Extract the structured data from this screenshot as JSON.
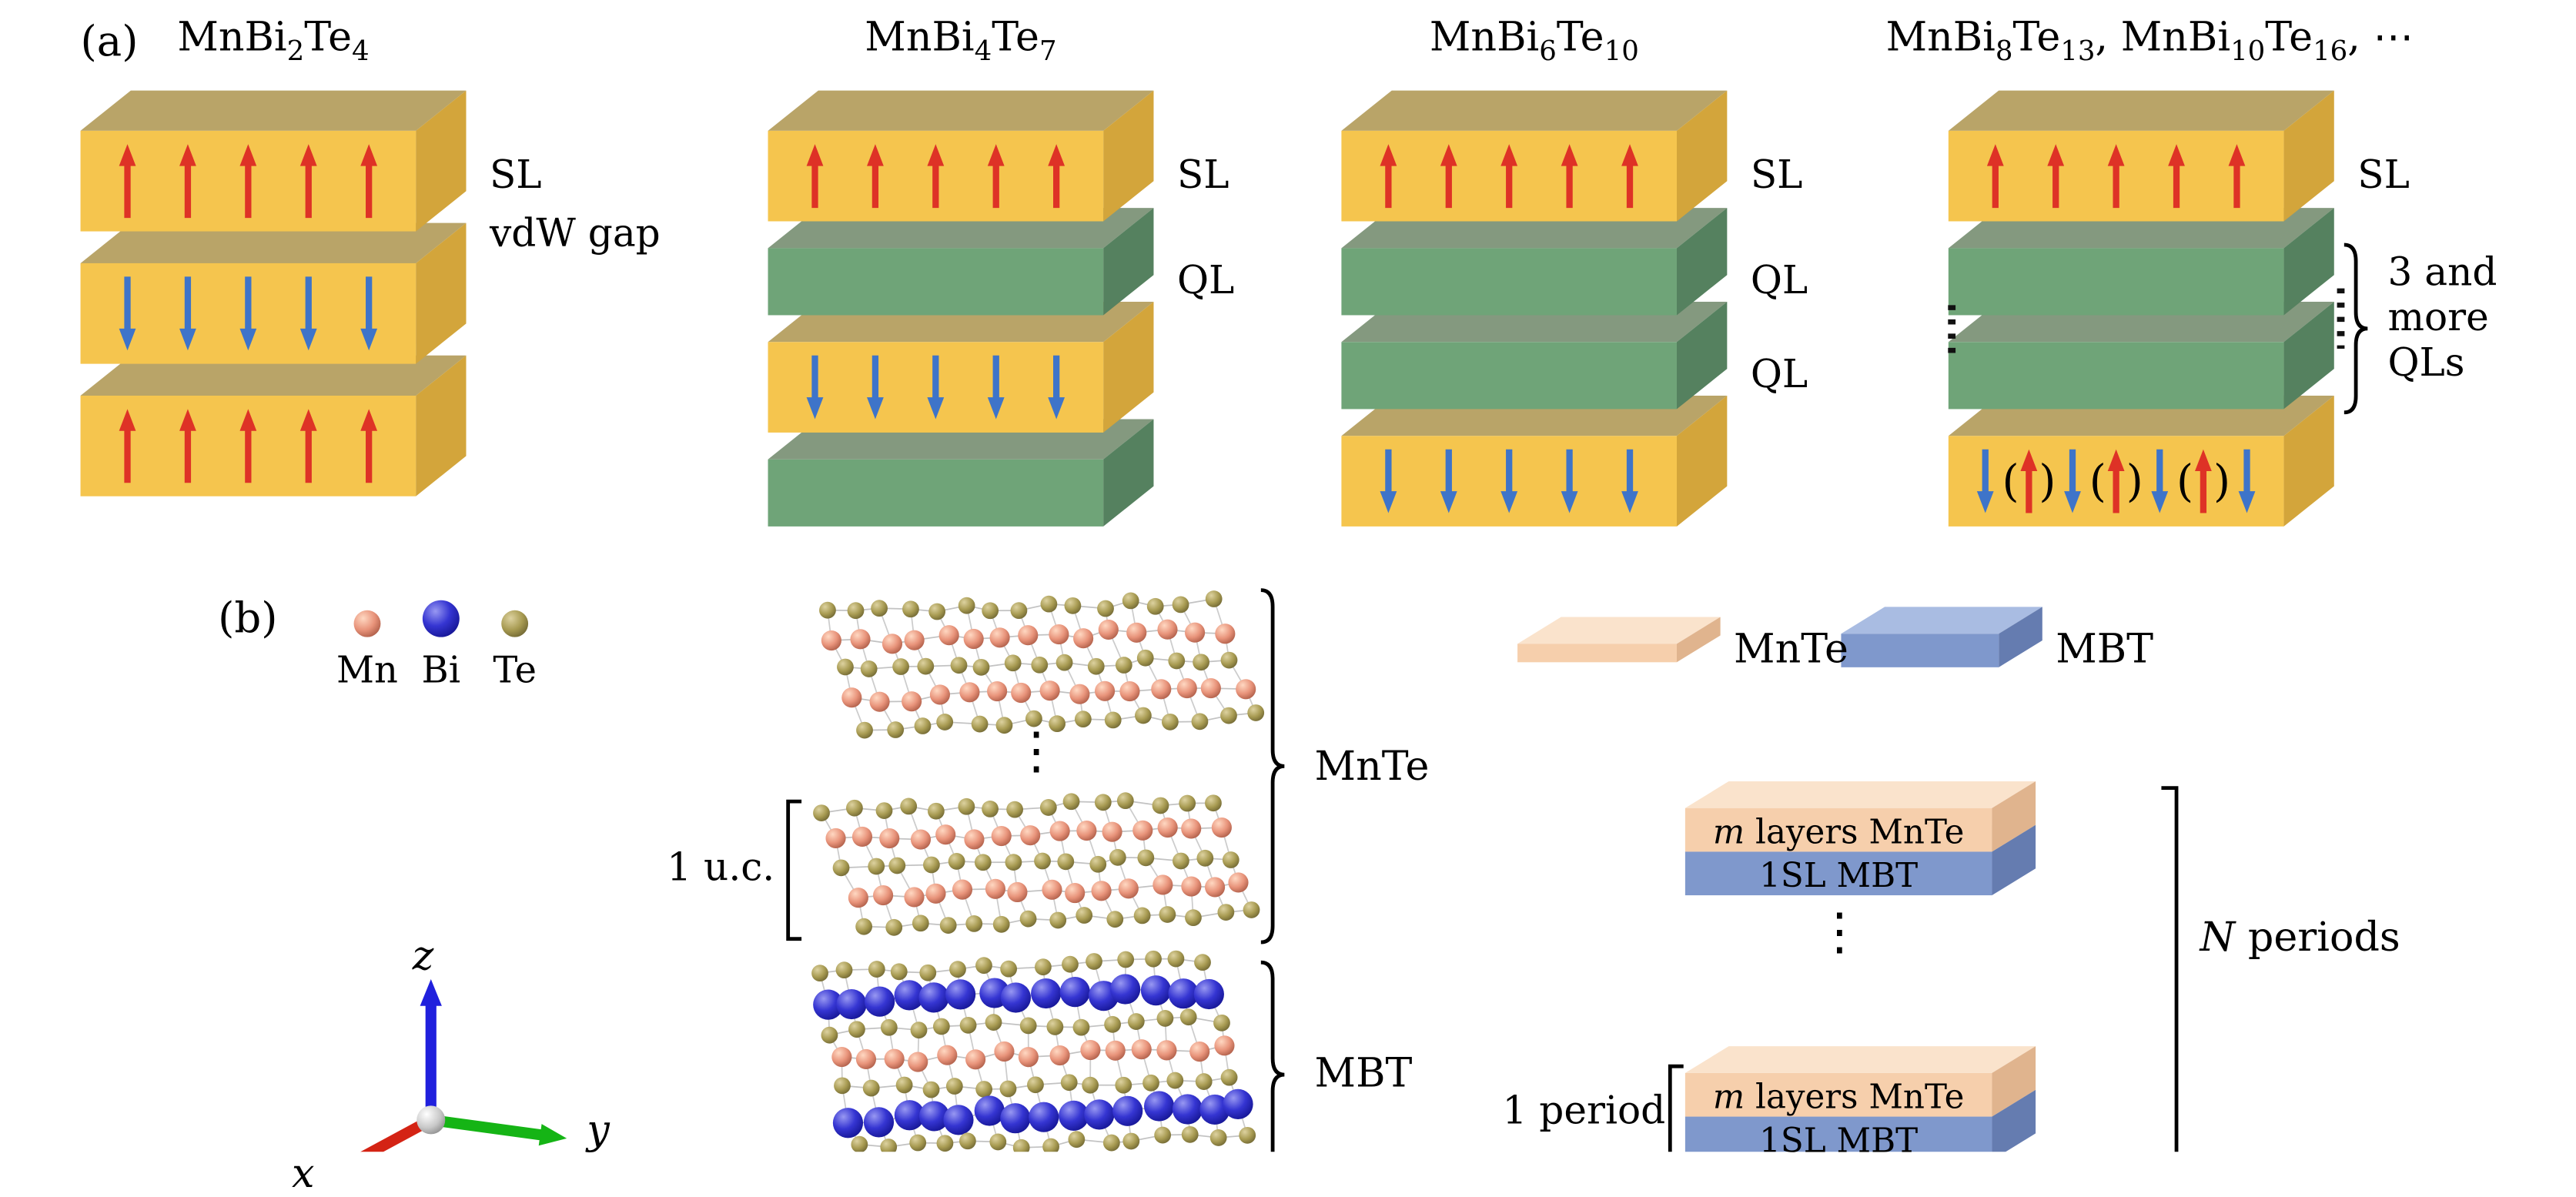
{
  "panel_a": {
    "label": "(a)",
    "columns": [
      {
        "title": "MnBi{2}Te{4}",
        "layers": [
          {
            "kind": "SL",
            "arrows": "up"
          },
          {
            "kind": "SL",
            "arrows": "down"
          },
          {
            "kind": "SL",
            "arrows": "up"
          }
        ],
        "labels": {
          "sl": "SL",
          "vdw": "vdW gap"
        }
      },
      {
        "title": "MnBi{4}Te{7}",
        "layers": [
          {
            "kind": "SL",
            "arrows": "up"
          },
          {
            "kind": "QL"
          },
          {
            "kind": "SL",
            "arrows": "down"
          },
          {
            "kind": "QL"
          }
        ],
        "labels": {
          "sl": "SL",
          "ql": "QL"
        }
      },
      {
        "title": "MnBi{6}Te{10}",
        "layers": [
          {
            "kind": "SL",
            "arrows": "up"
          },
          {
            "kind": "QL"
          },
          {
            "kind": "QL"
          },
          {
            "kind": "SL",
            "arrows": "down"
          }
        ],
        "labels": {
          "sl": "SL",
          "ql1": "QL",
          "ql2": "QL"
        }
      },
      {
        "title": "MnBi{8}Te{13}, MnBi{10}Te{16}, ⋯",
        "layers": [
          {
            "kind": "SL",
            "arrows": "up"
          },
          {
            "kind": "QL"
          },
          {
            "kind": "QL"
          },
          {
            "kind": "SL",
            "arrows": "mixed"
          }
        ],
        "labels": {
          "sl": "SL"
        },
        "brace_lines": [
          "3 and",
          "more",
          "QLs"
        ]
      }
    ],
    "mixed_pattern": [
      "down",
      "(up)",
      "down",
      "(up)",
      "down",
      "(up)",
      "down"
    ]
  },
  "panel_b": {
    "label": "(b)",
    "legend": {
      "atoms": [
        {
          "name": "Mn",
          "color": "#E8937A"
        },
        {
          "name": "Bi",
          "color": "#3535D2"
        },
        {
          "name": "Te",
          "color": "#A89B52"
        }
      ]
    },
    "axes": {
      "x": "x",
      "y": "y",
      "z": "z"
    },
    "crystal": {
      "blocks": [
        {
          "rows": [
            "Te",
            "Mn",
            "Te",
            "Mn",
            "Te"
          ]
        },
        {
          "rows": [
            "Te",
            "Mn",
            "Te",
            "Mn",
            "Te"
          ]
        },
        {
          "rows": [
            "Te",
            "Bi",
            "Te",
            "Mn",
            "Te",
            "Bi",
            "Te"
          ]
        }
      ],
      "uc_label": "1 u.c.",
      "mnte_label": "MnTe",
      "mbt_label": "MBT",
      "dots": "⋮"
    },
    "schematic": {
      "mnte_chip_label": "MnTe",
      "mbt_chip_label": "MBT",
      "stack_top_var": "m",
      "stack_top_rest": " layers MnTe",
      "stack_bottom": "1SL MBT",
      "dots": "⋮",
      "n_periods_var": "N",
      "n_periods_rest": " periods",
      "one_period": "1 period"
    }
  },
  "colors": {
    "sl_front": "#F5C54E",
    "sl_top": "#B9A468",
    "sl_side": "#D3A53B",
    "ql_front": "#6FA478",
    "ql_top": "#84997F",
    "ql_side": "#55815F",
    "arrow_up": "#DE3226",
    "arrow_down": "#3E74C9",
    "mn_atom": "#E8937A",
    "bi_atom": "#3535D2",
    "te_atom": "#A89B52",
    "mnte_front": "#F6CFAC",
    "mnte_top": "#FAE3CC",
    "mnte_side": "#E0B48E",
    "mbt_front": "#7F98CC",
    "mbt_top": "#A9BCE2",
    "mbt_side": "#657CB0",
    "axis_x": "#D42314",
    "axis_y": "#15B415",
    "axis_z": "#2020DD",
    "background": "#FFFFFF"
  }
}
